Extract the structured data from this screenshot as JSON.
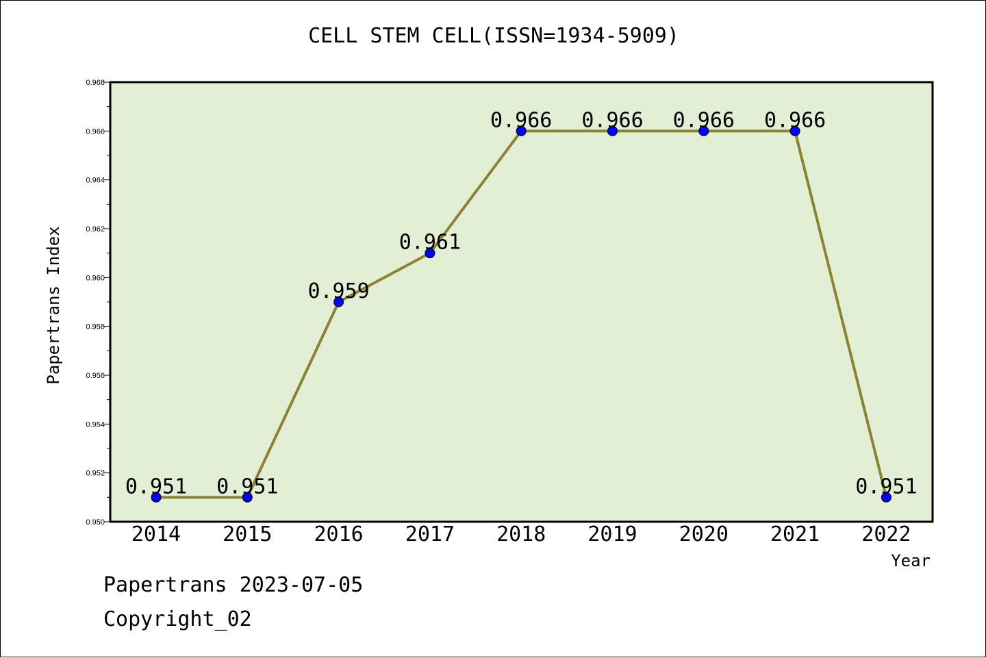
{
  "chart_data": {
    "type": "line",
    "title": "CELL STEM CELL(ISSN=1934-5909)",
    "xlabel": "Year",
    "ylabel": "Papertrans Index",
    "categories": [
      "2014",
      "2015",
      "2016",
      "2017",
      "2018",
      "2019",
      "2020",
      "2021",
      "2022"
    ],
    "series": [
      {
        "values": [
          0.951,
          0.951,
          0.959,
          0.961,
          0.966,
          0.966,
          0.966,
          0.966,
          0.951
        ],
        "labels": [
          "0.951",
          "0.951",
          "0.959",
          "0.961",
          "0.966",
          "0.966",
          "0.966",
          "0.966",
          "0.951"
        ]
      }
    ],
    "ylim": [
      0.95,
      0.968
    ],
    "yticks": [
      "0.950",
      "0.952",
      "0.954",
      "0.956",
      "0.958",
      "0.960",
      "0.962",
      "0.964",
      "0.966",
      "0.968"
    ],
    "grid": false,
    "colors": {
      "plot_bg": "#e2efd5",
      "line": "#8b8233",
      "marker": "#0000ff"
    }
  },
  "footer": {
    "line1": "Papertrans 2023-07-05",
    "line2": "Copyright_02"
  }
}
